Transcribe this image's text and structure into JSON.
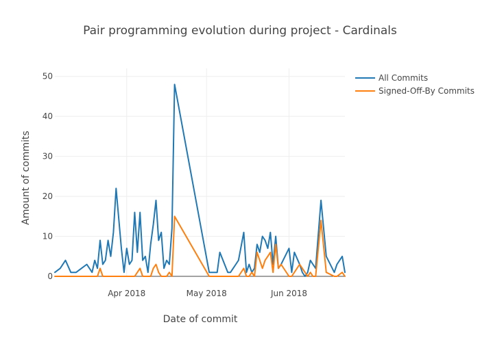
{
  "chart_data": {
    "type": "line",
    "title": "Pair programming evolution during project - Cardinals",
    "xlabel": "Date of commit",
    "ylabel": "Amount of commits",
    "xlim": [
      "2018-03-05",
      "2018-06-22"
    ],
    "ylim": [
      0,
      52
    ],
    "x_ticks": [
      {
        "date": "2018-04-01",
        "label": "Apr 2018"
      },
      {
        "date": "2018-05-01",
        "label": "May 2018"
      },
      {
        "date": "2018-06-01",
        "label": "Jun 2018"
      }
    ],
    "y_ticks": [
      0,
      10,
      20,
      30,
      40,
      50
    ],
    "grid": true,
    "legend_position": "top-right",
    "x": [
      "2018-03-05",
      "2018-03-07",
      "2018-03-09",
      "2018-03-11",
      "2018-03-13",
      "2018-03-15",
      "2018-03-17",
      "2018-03-19",
      "2018-03-20",
      "2018-03-21",
      "2018-03-22",
      "2018-03-23",
      "2018-03-24",
      "2018-03-25",
      "2018-03-26",
      "2018-03-27",
      "2018-03-28",
      "2018-03-30",
      "2018-03-31",
      "2018-04-01",
      "2018-04-02",
      "2018-04-03",
      "2018-04-04",
      "2018-04-05",
      "2018-04-06",
      "2018-04-07",
      "2018-04-08",
      "2018-04-09",
      "2018-04-10",
      "2018-04-11",
      "2018-04-12",
      "2018-04-13",
      "2018-04-14",
      "2018-04-15",
      "2018-04-16",
      "2018-04-17",
      "2018-04-18",
      "2018-04-19",
      "2018-05-02",
      "2018-05-04",
      "2018-05-05",
      "2018-05-06",
      "2018-05-09",
      "2018-05-10",
      "2018-05-11",
      "2018-05-12",
      "2018-05-13",
      "2018-05-15",
      "2018-05-16",
      "2018-05-17",
      "2018-05-18",
      "2018-05-19",
      "2018-05-20",
      "2018-05-21",
      "2018-05-22",
      "2018-05-23",
      "2018-05-24",
      "2018-05-25",
      "2018-05-26",
      "2018-05-27",
      "2018-05-28",
      "2018-05-29",
      "2018-06-01",
      "2018-06-02",
      "2018-06-03",
      "2018-06-05",
      "2018-06-06",
      "2018-06-07",
      "2018-06-08",
      "2018-06-09",
      "2018-06-10",
      "2018-06-11",
      "2018-06-13",
      "2018-06-15",
      "2018-06-18",
      "2018-06-19",
      "2018-06-21",
      "2018-06-22"
    ],
    "series": [
      {
        "name": "All Commits",
        "color": "#1f77b4",
        "values": [
          1,
          2,
          4,
          1,
          1,
          2,
          3,
          1,
          4,
          2,
          9,
          3,
          4,
          9,
          5,
          11,
          22,
          7,
          1,
          7,
          3,
          4,
          16,
          6,
          16,
          4,
          5,
          1,
          8,
          13,
          19,
          9,
          11,
          2,
          4,
          3,
          12,
          48,
          1,
          1,
          1,
          6,
          1,
          1,
          2,
          3,
          4,
          11,
          1,
          3,
          1,
          2,
          8,
          6,
          10,
          9,
          7,
          11,
          3,
          10,
          2,
          3,
          7,
          1,
          6,
          3,
          1,
          0,
          1,
          4,
          3,
          2,
          19,
          5,
          1,
          3,
          5,
          1
        ]
      },
      {
        "name": "Signed-Off-By Commits",
        "color": "#ff7f0e",
        "values": [
          0,
          0,
          0,
          0,
          0,
          0,
          0,
          0,
          0,
          0,
          2,
          0,
          0,
          0,
          0,
          0,
          0,
          0,
          0,
          0,
          0,
          0,
          0,
          1,
          2,
          0,
          0,
          0,
          0,
          2,
          3,
          1,
          0,
          0,
          0,
          1,
          0,
          15,
          0,
          0,
          0,
          0,
          0,
          0,
          0,
          0,
          0,
          2,
          0,
          0,
          1,
          0,
          6,
          4,
          2,
          4,
          5,
          6,
          1,
          8,
          2,
          3,
          0,
          0,
          1,
          3,
          2,
          1,
          0,
          1,
          0,
          0,
          14,
          1,
          0,
          0,
          1,
          0
        ]
      }
    ]
  }
}
